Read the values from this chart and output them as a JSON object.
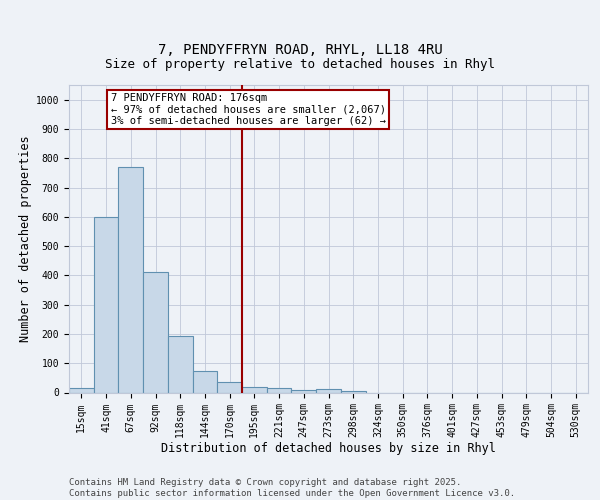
{
  "title_line1": "7, PENDYFFRYN ROAD, RHYL, LL18 4RU",
  "title_line2": "Size of property relative to detached houses in Rhyl",
  "xlabel": "Distribution of detached houses by size in Rhyl",
  "ylabel": "Number of detached properties",
  "categories": [
    "15sqm",
    "41sqm",
    "67sqm",
    "92sqm",
    "118sqm",
    "144sqm",
    "170sqm",
    "195sqm",
    "221sqm",
    "247sqm",
    "273sqm",
    "298sqm",
    "324sqm",
    "350sqm",
    "376sqm",
    "401sqm",
    "427sqm",
    "453sqm",
    "479sqm",
    "504sqm",
    "530sqm"
  ],
  "values": [
    15,
    600,
    770,
    410,
    193,
    75,
    37,
    18,
    15,
    10,
    13,
    5,
    0,
    0,
    0,
    0,
    0,
    0,
    0,
    0,
    0
  ],
  "bar_color": "#c8d8e8",
  "bar_edge_color": "#6090b0",
  "grid_color": "#c0c8d8",
  "vline_color": "#990000",
  "annotation_text": "7 PENDYFFRYN ROAD: 176sqm\n← 97% of detached houses are smaller (2,067)\n3% of semi-detached houses are larger (62) →",
  "annotation_box_color": "#990000",
  "ylim": [
    0,
    1050
  ],
  "yticks": [
    0,
    100,
    200,
    300,
    400,
    500,
    600,
    700,
    800,
    900,
    1000
  ],
  "footer_text": "Contains HM Land Registry data © Crown copyright and database right 2025.\nContains public sector information licensed under the Open Government Licence v3.0.",
  "bg_color": "#eef2f7",
  "plot_bg_color": "#eef2f7",
  "title_fontsize": 10,
  "subtitle_fontsize": 9,
  "axis_label_fontsize": 8.5,
  "tick_fontsize": 7,
  "footer_fontsize": 6.5,
  "ann_fontsize": 7.5
}
